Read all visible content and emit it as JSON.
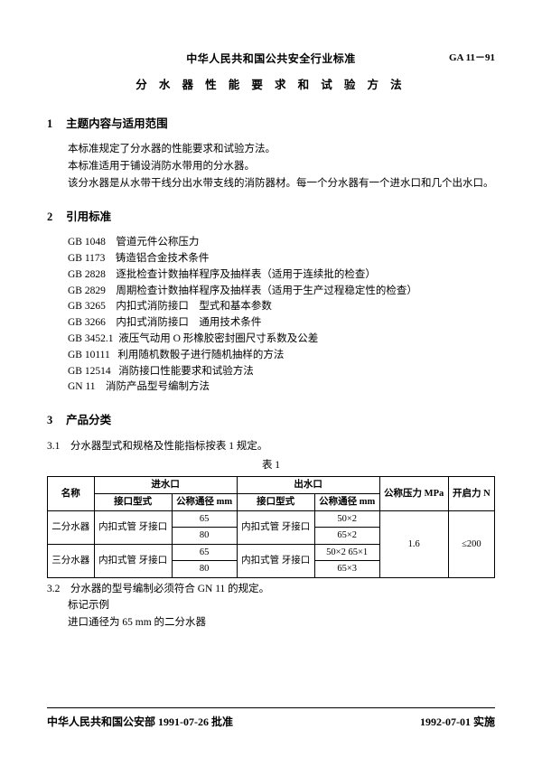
{
  "header": {
    "org": "中华人民共和国公共安全行业标准",
    "code": "GA 11－91",
    "title": "分 水 器 性 能 要 求 和 试 验 方 法"
  },
  "s1": {
    "num": "1",
    "title": "主题内容与适用范围",
    "p1": "本标准规定了分水器的性能要求和试验方法。",
    "p2": "本标准适用于铺设消防水带用的分水器。",
    "p3": "该分水器是从水带干线分出水带支线的消防器材。每一个分水器有一个进水口和几个出水口。"
  },
  "s2": {
    "num": "2",
    "title": "引用标准",
    "refs": [
      "GB 1048    管道元件公称压力",
      "GB 1173    铸造铝合金技术条件",
      "GB 2828    逐批检查计数抽样程序及抽样表（适用于连续批的检查）",
      "GB 2829    周期检查计数抽样程序及抽样表（适用于生产过程稳定性的检查）",
      "GB 3265    内扣式消防接口　型式和基本参数",
      "GB 3266    内扣式消防接口　通用技术条件",
      "GB 3452.1  液压气动用 O 形橡胶密封圈尺寸系数及公差",
      "GB 10111   利用随机数骰子进行随机抽样的方法",
      "GB 12514   消防接口性能要求和试验方法",
      "GN 11    消防产品型号编制方法"
    ]
  },
  "s3": {
    "num": "3",
    "title": "产品分类",
    "p31": "3.1　分水器型式和规格及性能指标按表 1 规定。",
    "caption": "表 1",
    "tbl": {
      "h_name": "名称",
      "h_in": "进水口",
      "h_out": "出水口",
      "h_press": "公称压力\nMPa",
      "h_force": "开启力\nN",
      "h_conntype": "接口型式",
      "h_dn": "公称通径\nmm",
      "r1": {
        "name": "二分水器",
        "in_type": "内扣式管\n牙接口",
        "in_dn1": "65",
        "in_dn2": "80",
        "out_type": "内扣式管\n牙接口",
        "out_dn1": "50×2",
        "out_dn2": "65×2"
      },
      "r2": {
        "name": "三分水器",
        "in_type": "内扣式管\n牙接口",
        "in_dn1": "65",
        "in_dn2": "80",
        "out_type": "内扣式管\n牙接口",
        "out_dn1": "50×2\n65×1",
        "out_dn2": "65×3"
      },
      "press": "1.6",
      "force": "≤200"
    },
    "p32": "3.2　分水器的型号编制必须符合 GN 11 的规定。",
    "p32a": "标记示例",
    "p32b": "进口通径为 65 mm 的二分水器"
  },
  "footer": {
    "left": "中华人民共和国公安部 1991-07-26 批准",
    "right": "1992-07-01 实施"
  }
}
